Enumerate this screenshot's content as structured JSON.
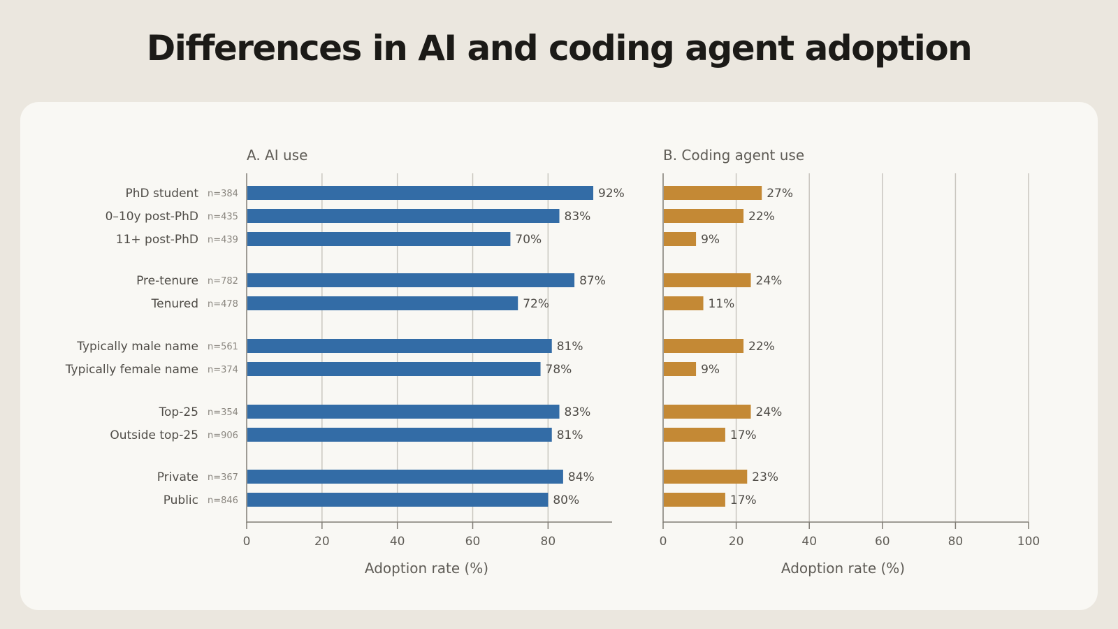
{
  "title": "Differences in AI and coding agent adoption",
  "chart_data": {
    "type": "bar",
    "orientation": "horizontal",
    "title": "Differences in AI and coding agent adoption",
    "categories": [
      {
        "label": "PhD student",
        "n": "n=384"
      },
      {
        "label": "0–10y post-PhD",
        "n": "n=435"
      },
      {
        "label": "11+ post-PhD",
        "n": "n=439"
      },
      {
        "label": "Pre-tenure",
        "n": "n=782"
      },
      {
        "label": "Tenured",
        "n": "n=478"
      },
      {
        "label": "Typically male name",
        "n": "n=561"
      },
      {
        "label": "Typically female name",
        "n": "n=374"
      },
      {
        "label": "Top-25",
        "n": "n=354"
      },
      {
        "label": "Outside top-25",
        "n": "n=906"
      },
      {
        "label": "Private",
        "n": "n=367"
      },
      {
        "label": "Public",
        "n": "n=846"
      }
    ],
    "groups": [
      [
        0,
        1,
        2
      ],
      [
        3,
        4
      ],
      [
        5,
        6
      ],
      [
        7,
        8
      ],
      [
        9,
        10
      ]
    ],
    "panels": [
      {
        "title": "A. AI use",
        "xlabel": "Adoption rate (%)",
        "xlim": [
          0,
          97
        ],
        "ticks": [
          0,
          20,
          40,
          60,
          80
        ],
        "color": "#336ca6",
        "values": [
          92,
          83,
          70,
          87,
          72,
          81,
          78,
          83,
          81,
          84,
          80
        ],
        "value_labels": [
          "92%",
          "83%",
          "70%",
          "87%",
          "72%",
          "81%",
          "78%",
          "83%",
          "81%",
          "84%",
          "80%"
        ]
      },
      {
        "title": "B. Coding agent use",
        "xlabel": "Adoption rate (%)",
        "xlim": [
          0,
          100
        ],
        "ticks": [
          0,
          20,
          40,
          60,
          80,
          100
        ],
        "color": "#c48935",
        "values": [
          27,
          22,
          9,
          24,
          11,
          22,
          9,
          24,
          17,
          23,
          17
        ],
        "value_labels": [
          "27%",
          "22%",
          "9%",
          "24%",
          "11%",
          "22%",
          "9%",
          "24%",
          "17%",
          "23%",
          "17%"
        ]
      }
    ],
    "grid": true
  }
}
